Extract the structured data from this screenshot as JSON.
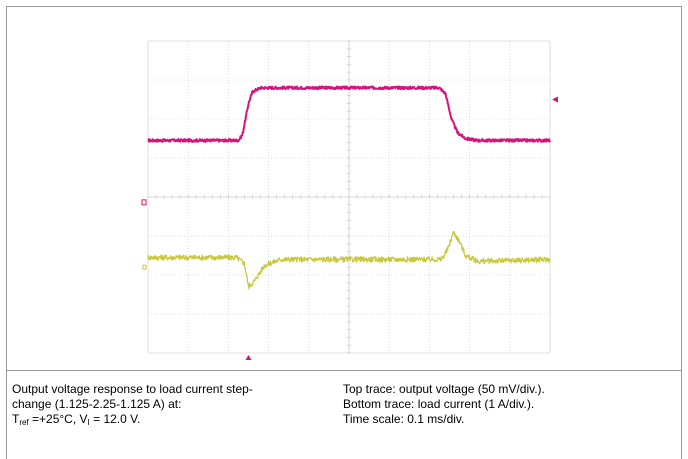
{
  "caption": {
    "left": {
      "line1": "Output voltage response to load current step-",
      "line2": "change (1.125-2.25-1.125 A) at:",
      "line3_prefix": "T",
      "line3_sub1": "ref",
      "line3_mid": " =+25°C, V",
      "line3_sub2": "I",
      "line3_suffix": " = 12.0 V."
    },
    "right": {
      "line1": "Top trace: output voltage (50 mV/div.).",
      "line2": "Bottom trace: load current (1 A/div.).",
      "line3": "Time scale: 0.1 ms/div."
    }
  },
  "chart_data": {
    "type": "line",
    "grid": true,
    "x_divisions": 10,
    "y_divisions": 8,
    "x_range": [
      0,
      10
    ],
    "y_range": [
      0,
      8
    ],
    "series": [
      {
        "color": "#d4147c",
        "x": [
          0,
          2.25,
          2.35,
          2.5,
          2.6,
          2.8,
          3.0,
          7.25,
          7.4,
          7.55,
          7.7,
          7.9,
          8.2,
          10
        ],
        "y": [
          5.45,
          5.45,
          5.6,
          6.4,
          6.7,
          6.8,
          6.8,
          6.8,
          6.65,
          6.0,
          5.65,
          5.5,
          5.45,
          5.45
        ]
      },
      {
        "color": "#c8c838",
        "x": [
          0,
          2.2,
          2.4,
          2.5,
          2.65,
          2.9,
          3.3,
          7.3,
          7.45,
          7.6,
          7.75,
          7.9,
          8.2,
          10
        ],
        "y": [
          2.45,
          2.45,
          2.3,
          1.7,
          1.85,
          2.25,
          2.4,
          2.4,
          2.65,
          3.1,
          2.85,
          2.5,
          2.35,
          2.4
        ]
      }
    ],
    "markers": {
      "color": "#d4147c",
      "right_level": 6.5,
      "bottom_time": 2.5,
      "left_level_top": 3.85,
      "left_level_bottom": 2.2
    }
  }
}
